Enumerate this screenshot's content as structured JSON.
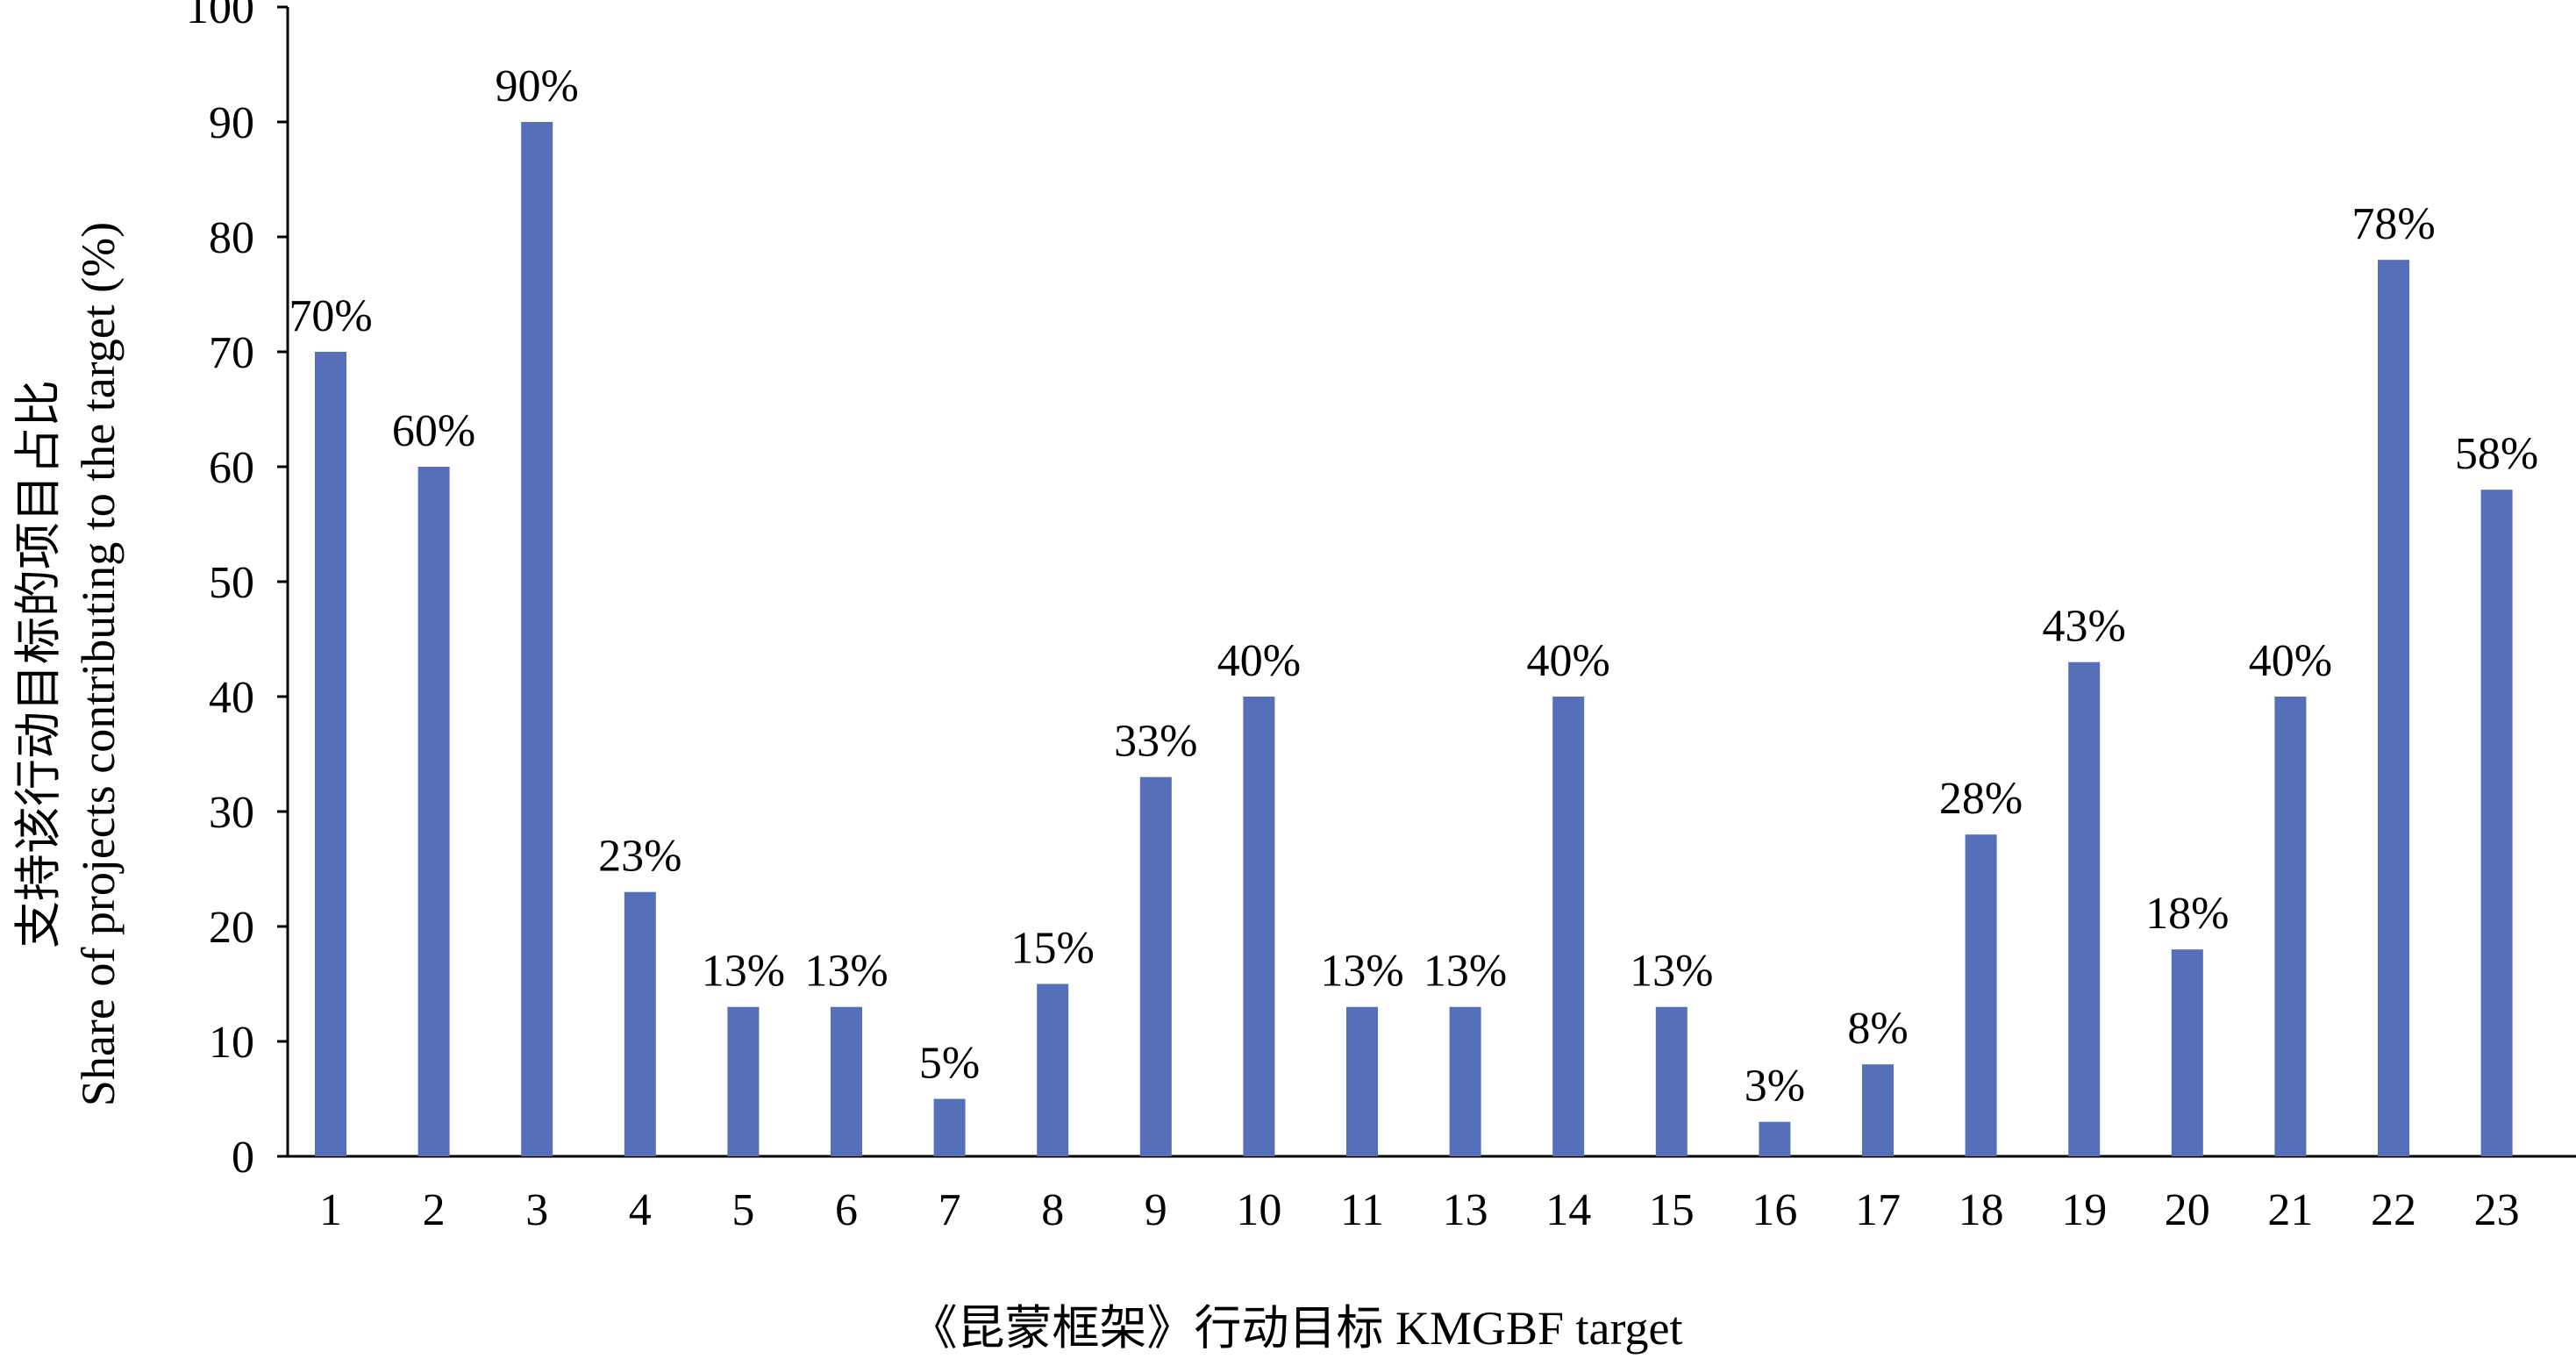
{
  "chart_data": {
    "type": "bar",
    "title": "",
    "xlabel": "《昆蒙框架》行动目标 KMGBF target",
    "ylabel_lines": [
      "支持该行动目标的项目占比",
      "Share of projects contributing to the target (%)"
    ],
    "ylim": [
      0,
      100
    ],
    "yticks": [
      0,
      10,
      20,
      30,
      40,
      50,
      60,
      70,
      80,
      90,
      100
    ],
    "categories": [
      "1",
      "2",
      "3",
      "4",
      "5",
      "6",
      "7",
      "8",
      "9",
      "10",
      "11",
      "13",
      "14",
      "15",
      "16",
      "17",
      "18",
      "19",
      "20",
      "21",
      "22",
      "23"
    ],
    "values": [
      70,
      60,
      90,
      23,
      13,
      13,
      5,
      15,
      33,
      40,
      13,
      13,
      40,
      13,
      3,
      8,
      28,
      43,
      18,
      40,
      78,
      58
    ],
    "data_labels": [
      "70%",
      "60%",
      "90%",
      "23%",
      "13%",
      "13%",
      "5%",
      "15%",
      "33%",
      "40%",
      "13%",
      "13%",
      "40%",
      "13%",
      "3%",
      "8%",
      "28%",
      "43%",
      "18%",
      "40%",
      "78%",
      "58%"
    ],
    "bar_color": "#5570b8",
    "grid": false,
    "legend": "none"
  }
}
